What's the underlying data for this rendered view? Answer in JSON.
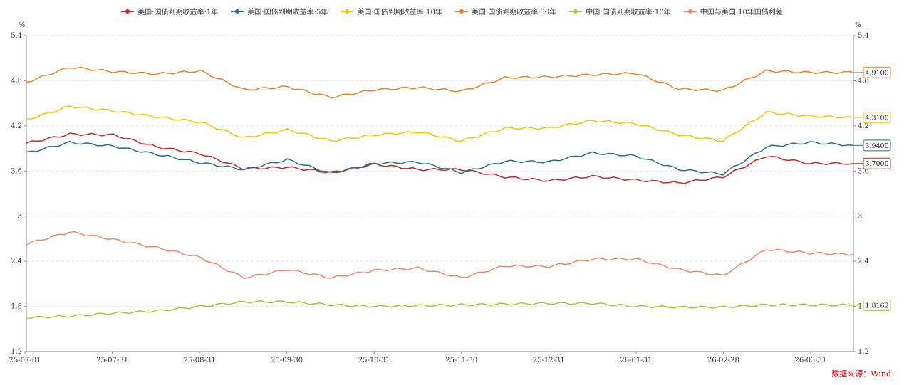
{
  "source": "数据来源：Wind",
  "chart_data": {
    "type": "line",
    "y_unit_left": "%",
    "y_unit_right": "%",
    "ylim": [
      1.2,
      5.4
    ],
    "yticks": [
      "1.2",
      "1.8",
      "2.4",
      "3",
      "3.6",
      "4.2",
      "4.8",
      "5.4"
    ],
    "xticks": [
      "25-07-01",
      "25-07-31",
      "25-08-31",
      "25-09-30",
      "25-10-31",
      "25-11-30",
      "25-12-31",
      "26-01-31",
      "26-02-28",
      "26-03-31"
    ],
    "x": [
      "25-07-01",
      "25-07-15",
      "25-07-31",
      "25-08-15",
      "25-08-31",
      "25-09-15",
      "25-09-30",
      "25-10-15",
      "25-10-31",
      "25-11-15",
      "25-11-30",
      "25-12-15",
      "25-12-31",
      "26-01-15",
      "26-01-31",
      "26-02-15",
      "26-02-28",
      "26-03-15",
      "26-03-31",
      "26-04-10"
    ],
    "legend_position": "top",
    "grid": true,
    "series": [
      {
        "name": "美国:国债到期收益率:1年",
        "color": "#c0272d",
        "values": [
          3.97,
          4.09,
          4.08,
          3.92,
          3.83,
          3.63,
          3.65,
          3.58,
          3.69,
          3.62,
          3.62,
          3.52,
          3.47,
          3.53,
          3.48,
          3.44,
          3.52,
          3.8,
          3.7,
          3.7
        ],
        "end_label": "3.7000"
      },
      {
        "name": "美国:国债到期收益率:5年",
        "color": "#2d6e7e",
        "values": [
          3.84,
          3.98,
          3.93,
          3.82,
          3.71,
          3.62,
          3.75,
          3.57,
          3.7,
          3.72,
          3.58,
          3.73,
          3.72,
          3.84,
          3.8,
          3.62,
          3.56,
          3.92,
          3.98,
          3.94
        ],
        "end_label": "3.9400"
      },
      {
        "name": "美国:国债到期收益率:10年",
        "color": "#f2c500",
        "values": [
          4.28,
          4.46,
          4.4,
          4.32,
          4.25,
          4.04,
          4.15,
          4.0,
          4.08,
          4.12,
          4.0,
          4.17,
          4.17,
          4.27,
          4.23,
          4.08,
          4.0,
          4.38,
          4.33,
          4.31
        ],
        "end_label": "4.3100"
      },
      {
        "name": "美国:国债到期收益率:30年",
        "color": "#e8812a",
        "values": [
          4.78,
          4.98,
          4.92,
          4.89,
          4.93,
          4.68,
          4.72,
          4.58,
          4.68,
          4.71,
          4.66,
          4.84,
          4.85,
          4.88,
          4.9,
          4.69,
          4.67,
          4.93,
          4.91,
          4.91
        ],
        "end_label": "4.9100"
      },
      {
        "name": "中国:国债到期收益率:10年",
        "color": "#a8c43a",
        "values": [
          1.65,
          1.67,
          1.71,
          1.74,
          1.8,
          1.86,
          1.86,
          1.82,
          1.8,
          1.81,
          1.82,
          1.83,
          1.84,
          1.84,
          1.8,
          1.79,
          1.79,
          1.82,
          1.82,
          1.8162
        ],
        "end_label": "1.8162"
      },
      {
        "name": "中国与美国:10年国债利差",
        "color": "#f0866e",
        "values": [
          2.63,
          2.79,
          2.69,
          2.58,
          2.45,
          2.18,
          2.29,
          2.18,
          2.28,
          2.31,
          2.18,
          2.34,
          2.33,
          2.43,
          2.43,
          2.29,
          2.21,
          2.56,
          2.51,
          2.49
        ],
        "end_label": ""
      }
    ]
  }
}
